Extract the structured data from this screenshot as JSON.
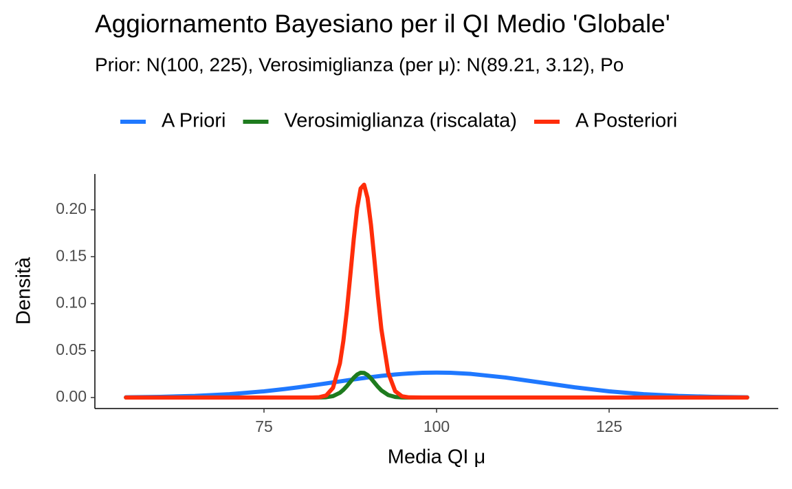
{
  "chart_data": {
    "type": "line",
    "title": "Aggiornamento Bayesiano per il QI Medio 'Globale'",
    "subtitle": "Prior: N(100, 225), Verosimiglianza (per μ): N(89.21, 3.12), Po",
    "x_label": "Media QI μ",
    "y_label": "Densità",
    "x": [
      55,
      60,
      65,
      70,
      75,
      78,
      80,
      82,
      83,
      84,
      85,
      86,
      86.5,
      87,
      87.5,
      88,
      88.5,
      89,
      89.5,
      90,
      90.5,
      91,
      91.5,
      92,
      93,
      94,
      95,
      96,
      98,
      100,
      102,
      105,
      110,
      115,
      120,
      125,
      130,
      135,
      140,
      145
    ],
    "series": [
      {
        "name": "A Priori",
        "color": "#1f78ff",
        "values": [
          0.0003,
          0.00076,
          0.00175,
          0.0036,
          0.00663,
          0.00907,
          0.01093,
          0.01295,
          0.014,
          0.01506,
          0.01613,
          0.0172,
          0.01774,
          0.01827,
          0.0188,
          0.01931,
          0.01982,
          0.02033,
          0.02082,
          0.0213,
          0.02176,
          0.02222,
          0.02265,
          0.02307,
          0.02385,
          0.02455,
          0.02516,
          0.02567,
          0.02636,
          0.0266,
          0.02636,
          0.02516,
          0.0213,
          0.01613,
          0.01093,
          0.00663,
          0.0036,
          0.00175,
          0.00076,
          0.0003
        ]
      },
      {
        "name": "Verosimiglianza (riscalata)",
        "color": "#1e7b1e",
        "values": [
          0,
          0,
          0,
          0,
          0,
          0,
          0,
          0,
          0.0001,
          0.00034,
          0.00155,
          0.0051,
          0.0082,
          0.01216,
          0.01665,
          0.02104,
          0.02454,
          0.02641,
          0.02624,
          0.02407,
          0.02037,
          0.01592,
          0.01148,
          0.00764,
          0.00266,
          0.00067,
          0.00012,
          0,
          0,
          0,
          0,
          0,
          0,
          0,
          0,
          0,
          0,
          0,
          0,
          0
        ]
      },
      {
        "name": "A Posteriori",
        "color": "#ff2d0a",
        "values": [
          0,
          0,
          0,
          0,
          0,
          0,
          0,
          3e-05,
          0.00032,
          0.00215,
          0.01041,
          0.03643,
          0.0604,
          0.0922,
          0.1298,
          0.1686,
          0.2018,
          0.2227,
          0.2267,
          0.2126,
          0.1839,
          0.1467,
          0.1078,
          0.0731,
          0.02633,
          0.00684,
          0.00129,
          0.00018,
          0,
          0,
          0,
          0,
          0,
          0,
          0,
          0,
          0,
          0,
          0,
          0
        ]
      }
    ],
    "xlim": [
      50.5,
      149.5
    ],
    "xticks": [
      75,
      100,
      125
    ],
    "ylim": [
      -0.0117,
      0.2381
    ],
    "yticks": [
      {
        "value": 0,
        "label": "0.00"
      },
      {
        "value": 0.05,
        "label": "0.05"
      },
      {
        "value": 0.1,
        "label": "0.10"
      },
      {
        "value": 0.15,
        "label": "0.15"
      },
      {
        "value": 0.2,
        "label": "0.20"
      }
    ],
    "legend": "top",
    "grid": false
  }
}
